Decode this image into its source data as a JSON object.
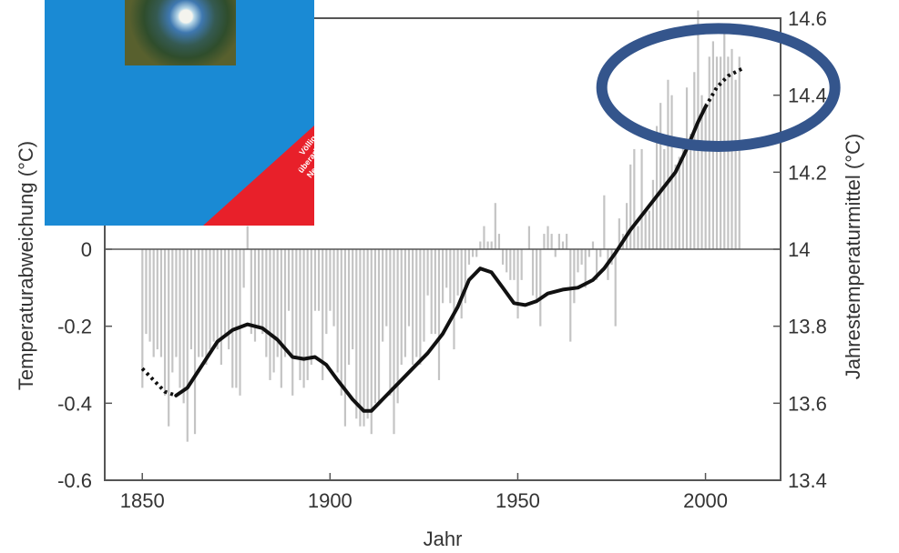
{
  "chart_data": {
    "type": "line",
    "xlabel": "Jahr",
    "ylabel": "Temperaturabweichung (°C)",
    "y2label": "Jahrestemperaturmittel (°C)",
    "xlim": [
      1840,
      2020
    ],
    "ylim": [
      -0.6,
      0.6
    ],
    "y2lim": [
      13.4,
      14.6
    ],
    "x_ticks": [
      "1850",
      "1900",
      "1950",
      "2000"
    ],
    "x_tick_values": [
      1850,
      1900,
      1950,
      2000
    ],
    "y_ticks": [
      "-0.6",
      "-0.4",
      "-0.2",
      "0"
    ],
    "y_tick_values": [
      -0.6,
      -0.4,
      -0.2,
      0
    ],
    "y2_ticks": [
      "13.4",
      "13.6",
      "13.8",
      "14",
      "14.2",
      "14.4",
      "14.6"
    ],
    "y2_tick_values": [
      13.4,
      13.6,
      13.8,
      14.0,
      14.2,
      14.4,
      14.6
    ],
    "grid": false,
    "series": [
      {
        "type": "bar",
        "years": [
          1850,
          1851,
          1852,
          1853,
          1854,
          1855,
          1856,
          1857,
          1858,
          1859,
          1860,
          1861,
          1862,
          1863,
          1864,
          1865,
          1866,
          1867,
          1868,
          1869,
          1870,
          1871,
          1872,
          1873,
          1874,
          1875,
          1876,
          1877,
          1878,
          1879,
          1880,
          1881,
          1882,
          1883,
          1884,
          1885,
          1886,
          1887,
          1888,
          1889,
          1890,
          1891,
          1892,
          1893,
          1894,
          1895,
          1896,
          1897,
          1898,
          1899,
          1900,
          1901,
          1902,
          1903,
          1904,
          1905,
          1906,
          1907,
          1908,
          1909,
          1910,
          1911,
          1912,
          1913,
          1914,
          1915,
          1916,
          1917,
          1918,
          1919,
          1920,
          1921,
          1922,
          1923,
          1924,
          1925,
          1926,
          1927,
          1928,
          1929,
          1930,
          1931,
          1932,
          1933,
          1934,
          1935,
          1936,
          1937,
          1938,
          1939,
          1940,
          1941,
          1942,
          1943,
          1944,
          1945,
          1946,
          1947,
          1948,
          1949,
          1950,
          1951,
          1952,
          1953,
          1954,
          1955,
          1956,
          1957,
          1958,
          1959,
          1960,
          1961,
          1962,
          1963,
          1964,
          1965,
          1966,
          1967,
          1968,
          1969,
          1970,
          1971,
          1972,
          1973,
          1974,
          1975,
          1976,
          1977,
          1978,
          1979,
          1980,
          1981,
          1982,
          1983,
          1984,
          1985,
          1986,
          1987,
          1988,
          1989,
          1990,
          1991,
          1992,
          1993,
          1994,
          1995,
          1996,
          1997,
          1998,
          1999,
          2000,
          2001,
          2002,
          2003,
          2004,
          2005,
          2006,
          2007,
          2008,
          2009
        ],
        "values": [
          -0.36,
          -0.22,
          -0.24,
          -0.28,
          -0.26,
          -0.28,
          -0.38,
          -0.46,
          -0.32,
          -0.28,
          -0.36,
          -0.4,
          -0.5,
          -0.26,
          -0.48,
          -0.28,
          -0.28,
          -0.3,
          -0.26,
          -0.24,
          -0.26,
          -0.3,
          -0.22,
          -0.26,
          -0.36,
          -0.36,
          -0.38,
          -0.1,
          0.06,
          -0.22,
          -0.24,
          -0.2,
          -0.22,
          -0.28,
          -0.34,
          -0.32,
          -0.28,
          -0.36,
          -0.28,
          -0.16,
          -0.38,
          -0.28,
          -0.34,
          -0.36,
          -0.34,
          -0.3,
          -0.16,
          -0.16,
          -0.34,
          -0.22,
          -0.16,
          -0.2,
          -0.32,
          -0.38,
          -0.46,
          -0.3,
          -0.26,
          -0.44,
          -0.46,
          -0.46,
          -0.44,
          -0.48,
          -0.4,
          -0.4,
          -0.24,
          -0.2,
          -0.38,
          -0.48,
          -0.4,
          -0.3,
          -0.28,
          -0.2,
          -0.3,
          -0.28,
          -0.3,
          -0.24,
          -0.12,
          -0.22,
          -0.22,
          -0.34,
          -0.14,
          -0.1,
          -0.14,
          -0.26,
          -0.12,
          -0.18,
          -0.14,
          -0.04,
          -0.02,
          -0.02,
          0.02,
          0.06,
          0.02,
          0.02,
          0.12,
          0.04,
          -0.04,
          -0.06,
          -0.08,
          -0.08,
          -0.18,
          -0.08,
          0.0,
          0.06,
          -0.12,
          -0.14,
          -0.2,
          0.04,
          0.06,
          0.04,
          -0.02,
          0.04,
          0.02,
          0.04,
          -0.24,
          -0.14,
          -0.06,
          -0.04,
          -0.1,
          -0.02,
          0.02,
          -0.08,
          -0.02,
          0.14,
          -0.08,
          -0.04,
          -0.2,
          0.08,
          0.04,
          0.12,
          0.22,
          0.26,
          0.06,
          0.26,
          0.1,
          0.1,
          0.18,
          0.32,
          0.38,
          0.26,
          0.44,
          0.4,
          0.22,
          0.24,
          0.28,
          0.42,
          0.3,
          0.46,
          0.62,
          0.4,
          0.38,
          0.5,
          0.54,
          0.5,
          0.5,
          0.56,
          0.5,
          0.52,
          0.44,
          0.5
        ]
      },
      {
        "type": "line",
        "name": "smoothed",
        "points": [
          [
            1859,
            -0.38
          ],
          [
            1862,
            -0.36
          ],
          [
            1866,
            -0.3
          ],
          [
            1870,
            -0.24
          ],
          [
            1874,
            -0.21
          ],
          [
            1878,
            -0.195
          ],
          [
            1882,
            -0.205
          ],
          [
            1886,
            -0.235
          ],
          [
            1890,
            -0.28
          ],
          [
            1893,
            -0.285
          ],
          [
            1896,
            -0.28
          ],
          [
            1899,
            -0.3
          ],
          [
            1902,
            -0.34
          ],
          [
            1906,
            -0.39
          ],
          [
            1909,
            -0.42
          ],
          [
            1911,
            -0.42
          ],
          [
            1914,
            -0.39
          ],
          [
            1918,
            -0.35
          ],
          [
            1922,
            -0.31
          ],
          [
            1926,
            -0.27
          ],
          [
            1930,
            -0.22
          ],
          [
            1934,
            -0.15
          ],
          [
            1937,
            -0.08
          ],
          [
            1940,
            -0.05
          ],
          [
            1943,
            -0.06
          ],
          [
            1946,
            -0.1
          ],
          [
            1949,
            -0.14
          ],
          [
            1952,
            -0.145
          ],
          [
            1955,
            -0.135
          ],
          [
            1958,
            -0.115
          ],
          [
            1962,
            -0.105
          ],
          [
            1966,
            -0.1
          ],
          [
            1970,
            -0.08
          ],
          [
            1973,
            -0.05
          ],
          [
            1976,
            -0.01
          ],
          [
            1980,
            0.05
          ],
          [
            1984,
            0.1
          ],
          [
            1988,
            0.15
          ],
          [
            1992,
            0.2
          ],
          [
            1995,
            0.26
          ],
          [
            1998,
            0.33
          ],
          [
            2000,
            0.37
          ]
        ]
      },
      {
        "type": "line",
        "name": "dotted-start",
        "points": [
          [
            1850,
            -0.31
          ],
          [
            1853,
            -0.34
          ],
          [
            1856,
            -0.37
          ],
          [
            1859,
            -0.38
          ]
        ]
      },
      {
        "type": "line",
        "name": "dotted-end",
        "points": [
          [
            2000,
            0.37
          ],
          [
            2003,
            0.42
          ],
          [
            2006,
            0.45
          ],
          [
            2010,
            0.47
          ]
        ]
      }
    ],
    "annotations": [
      {
        "type": "ellipse",
        "color": "#34558c",
        "center": [
          2001,
          14.42
        ],
        "rx_years": 26,
        "ry_degrees": 0.17
      }
    ],
    "colors": {
      "bars": "#c4c4c4",
      "line": "#111111",
      "axis": "#555555",
      "ellipse": "#34558c"
    }
  },
  "cover": {
    "background": "#1a8ad4",
    "band_color": "#e8202a",
    "lines": [
      "Völlig",
      "überarbeitete",
      "Neuausgabe"
    ]
  }
}
